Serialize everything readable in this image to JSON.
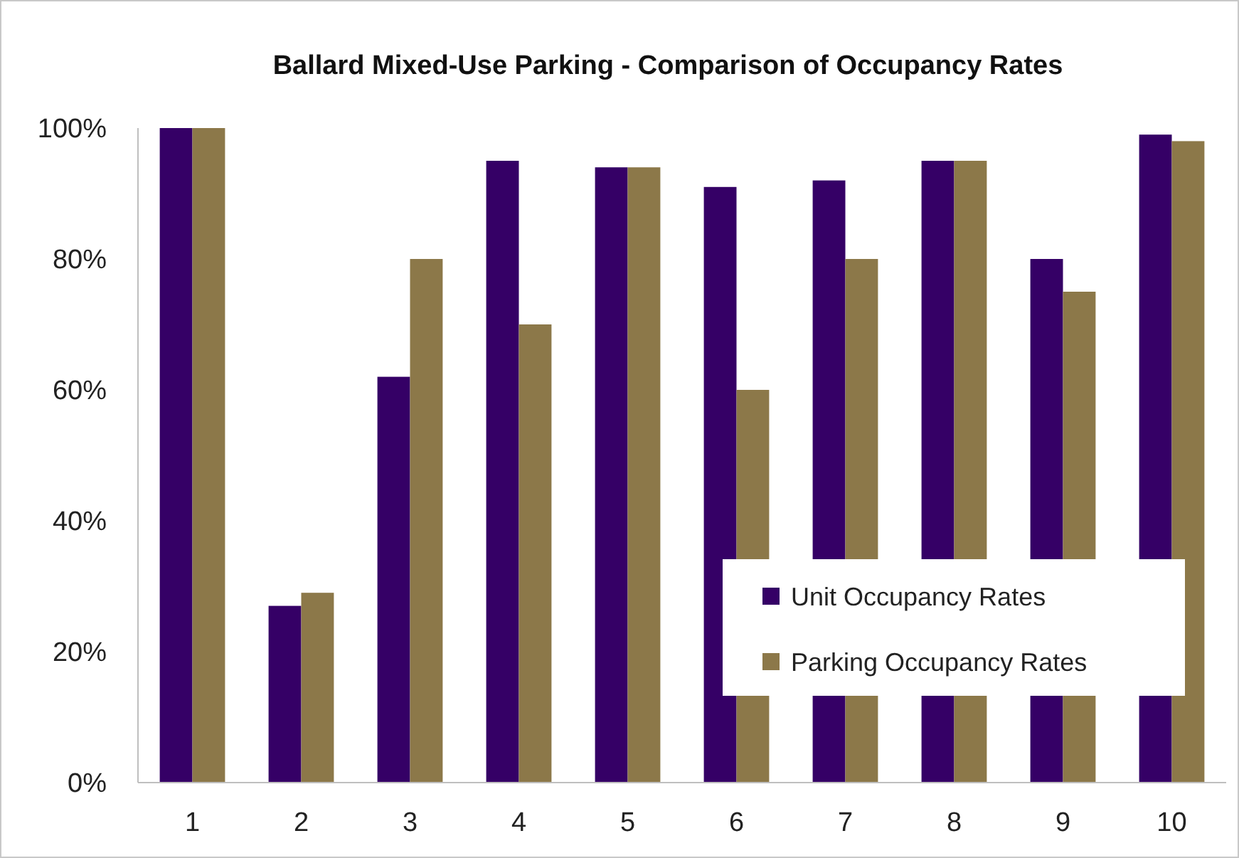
{
  "chart_data": {
    "type": "bar",
    "title": "Ballard Mixed-Use Parking - Comparison of Occupancy Rates",
    "categories": [
      "1",
      "2",
      "3",
      "4",
      "5",
      "6",
      "7",
      "8",
      "9",
      "10"
    ],
    "series": [
      {
        "name": "Unit Occupancy Rates",
        "color": "#350066",
        "values": [
          100,
          27,
          62,
          95,
          94,
          91,
          92,
          95,
          80,
          99
        ]
      },
      {
        "name": "Parking Occupancy Rates",
        "color": "#8c7849",
        "values": [
          100,
          29,
          80,
          70,
          94,
          60,
          80,
          95,
          75,
          98
        ]
      }
    ],
    "ylim": [
      0,
      100
    ],
    "yticks": [
      {
        "value": 0,
        "label": "0%"
      },
      {
        "value": 20,
        "label": "20%"
      },
      {
        "value": 40,
        "label": "40%"
      },
      {
        "value": 60,
        "label": "60%"
      },
      {
        "value": 80,
        "label": "80%"
      },
      {
        "value": 100,
        "label": "100%"
      }
    ],
    "grid": false,
    "legend": "bottom right"
  }
}
